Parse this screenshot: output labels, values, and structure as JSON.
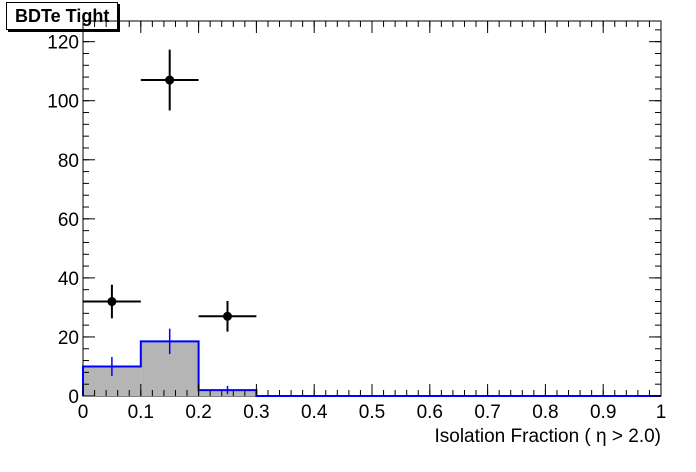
{
  "chart_data": {
    "type": "histogram",
    "title": "BDTe Tight",
    "xlabel": "Isolation Fraction ( η > 2.0)",
    "ylabel": "",
    "xlim": [
      0,
      1
    ],
    "ylim": [
      0,
      127
    ],
    "x_ticks": [
      "0",
      "0.1",
      "0.2",
      "0.3",
      "0.4",
      "0.5",
      "0.6",
      "0.7",
      "0.8",
      "0.9",
      "1"
    ],
    "y_ticks": [
      "0",
      "20",
      "40",
      "60",
      "80",
      "100",
      "120"
    ],
    "grid": false,
    "bin_edges": [
      0,
      0.1,
      0.2,
      0.3,
      0.4,
      0.5,
      0.6,
      0.7,
      0.8,
      0.9,
      1.0
    ],
    "series": [
      {
        "kind": "filled-histogram",
        "fill_color": "#b5b5b5",
        "line_color": "#0000ff",
        "values": [
          10,
          18.5,
          2,
          0,
          0,
          0,
          0,
          0,
          0,
          0
        ],
        "errors": [
          3.2,
          4.3,
          1.4,
          0,
          0,
          0,
          0,
          0,
          0,
          0
        ]
      },
      {
        "kind": "data-points",
        "color": "#000000",
        "x": [
          0.05,
          0.15,
          0.25
        ],
        "y": [
          32,
          107,
          27
        ],
        "xerr": [
          0.05,
          0.05,
          0.05
        ],
        "yerr": [
          5.7,
          10.3,
          5.2
        ]
      }
    ]
  }
}
